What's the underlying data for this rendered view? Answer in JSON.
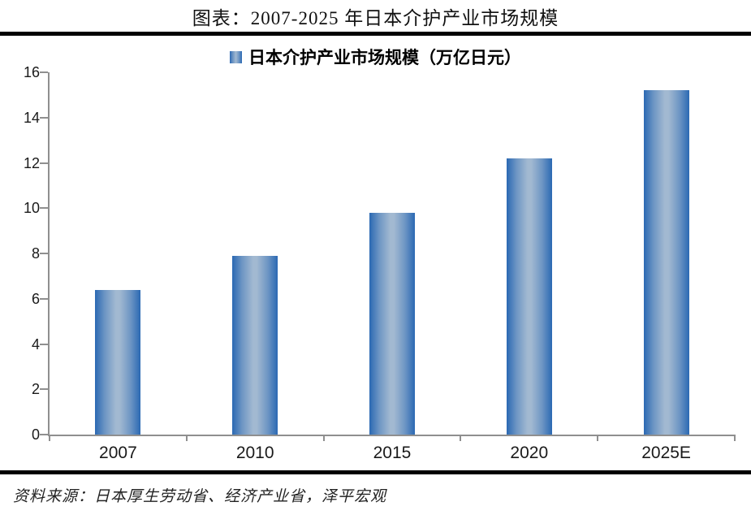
{
  "page": {
    "title": "图表：2007-2025 年日本介护产业市场规模",
    "source": "资料来源：日本厚生劳动省、经济产业省，泽平宏观"
  },
  "legend": {
    "label": "日本介护产业市场规模（万亿日元）"
  },
  "colors": {
    "bar_edge": "#2b69b3",
    "bar_center": "#a2b9d1",
    "axis_line": "#8f8f8f",
    "divider": "#000000",
    "text": "#1a1a1a"
  },
  "chart_data": {
    "type": "bar",
    "categories": [
      "2007",
      "2010",
      "2015",
      "2020",
      "2025E"
    ],
    "values": [
      6.4,
      7.9,
      9.8,
      12.2,
      15.2
    ],
    "series_name": "日本介护产业市场规模（万亿日元）",
    "title": "图表：2007-2025 年日本介护产业市场规模",
    "xlabel": "",
    "ylabel": "",
    "unit": "万亿日元",
    "ylim": [
      0,
      16
    ],
    "ytick_step": 2,
    "grid": false,
    "legend_position": "top-center"
  }
}
